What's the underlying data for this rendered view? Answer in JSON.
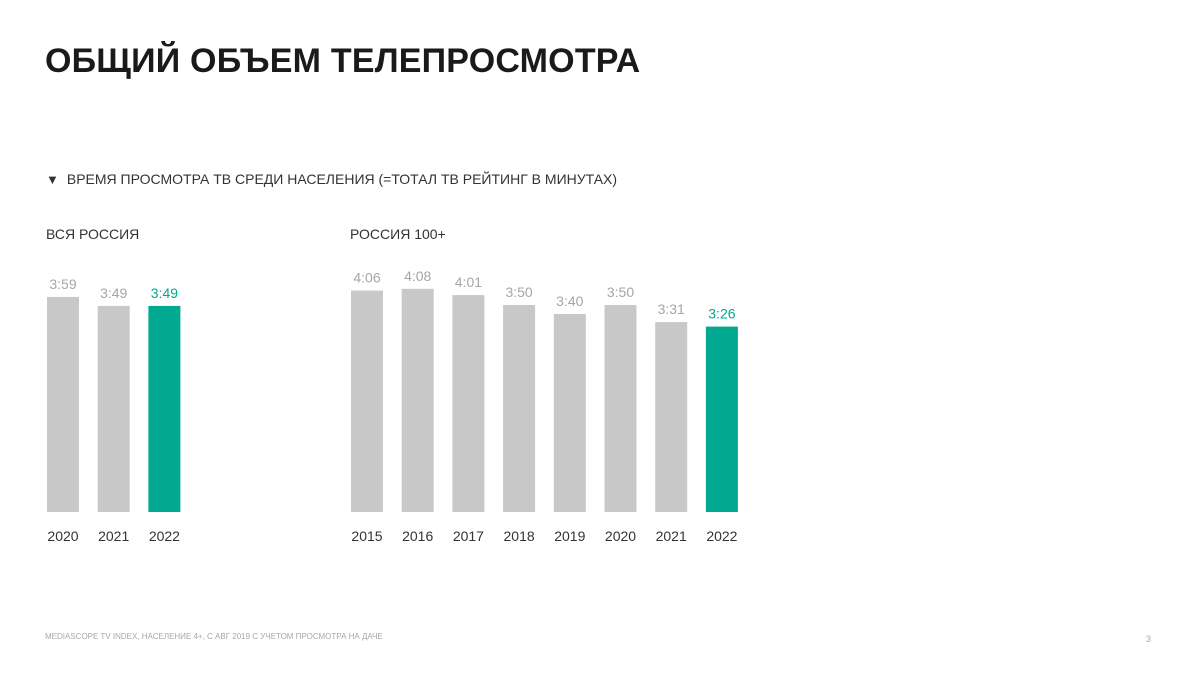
{
  "page": {
    "title": "ОБЩИЙ ОБЪЕМ ТЕЛЕПРОСМОТРА",
    "subtitle_marker": "▼",
    "subtitle": "ВРЕМЯ ПРОСМОТРА ТВ СРЕДИ НАСЕЛЕНИЯ (=ТОТАЛ ТВ РЕЙТИНГ В МИНУТАХ)",
    "footer": "MEDIASCOPE TV INDEX, НАСЕЛЕНИЕ 4+, С АВГ 2019 С УЧЕТОМ ПРОСМОТРА НА ДАЧЕ",
    "page_number": "3"
  },
  "colors": {
    "bar_default": "#c8c8c8",
    "bar_highlight": "#00a98f",
    "label_default": "#a6a6a6",
    "label_highlight": "#00a98f",
    "tick_label": "#333333"
  },
  "chart_data": [
    {
      "type": "bar",
      "title": "ВСЯ РОССИЯ",
      "categories": [
        "2020",
        "2021",
        "2022"
      ],
      "values": [
        239,
        229,
        229
      ],
      "data_labels": [
        "3:59",
        "3:49",
        "3:49"
      ],
      "highlight_index": 2,
      "ylim": [
        0,
        250
      ],
      "grid": false
    },
    {
      "type": "bar",
      "title": "РОССИЯ 100+",
      "categories": [
        "2015",
        "2016",
        "2017",
        "2018",
        "2019",
        "2020",
        "2021",
        "2022"
      ],
      "values": [
        246,
        248,
        241,
        230,
        220,
        230,
        211,
        206
      ],
      "data_labels": [
        "4:06",
        "4:08",
        "4:01",
        "3:50",
        "3:40",
        "3:50",
        "3:31",
        "3:26"
      ],
      "highlight_index": 7,
      "ylim": [
        0,
        250
      ],
      "grid": false
    }
  ]
}
